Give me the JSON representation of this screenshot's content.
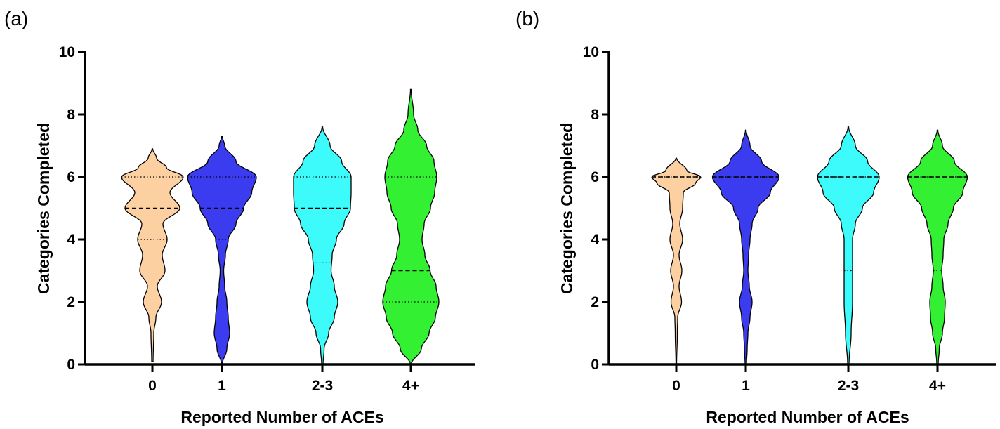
{
  "chart_data": [
    {
      "panel_label": "(a)",
      "type": "violin",
      "xlabel": "Reported Number of  ACEs",
      "ylabel": "Categories Completed",
      "ylim": [
        0,
        10
      ],
      "yticks": [
        0,
        2,
        4,
        6,
        8,
        10
      ],
      "categories": [
        "0",
        "1",
        "2-3",
        "4+"
      ],
      "series": [
        {
          "category": "0",
          "color": "#FDD0A2",
          "range": [
            0.1,
            6.9
          ],
          "median": 5,
          "quartiles": [
            4,
            6
          ],
          "profile": [
            [
              0.1,
              0.02
            ],
            [
              1,
              0.04
            ],
            [
              1.5,
              0.1
            ],
            [
              2,
              0.26
            ],
            [
              2.5,
              0.14
            ],
            [
              3,
              0.36
            ],
            [
              3.5,
              0.28
            ],
            [
              4,
              0.42
            ],
            [
              4.5,
              0.3
            ],
            [
              5,
              0.78
            ],
            [
              5.5,
              0.5
            ],
            [
              6,
              0.88
            ],
            [
              6.3,
              0.4
            ],
            [
              6.6,
              0.12
            ],
            [
              6.9,
              0.01
            ]
          ]
        },
        {
          "category": "1",
          "color": "#3B3BF0",
          "range": [
            0.0,
            7.3
          ],
          "median": 5,
          "quartiles": [
            4,
            6
          ],
          "profile": [
            [
              0.0,
              0.01
            ],
            [
              0.5,
              0.14
            ],
            [
              1,
              0.22
            ],
            [
              1.5,
              0.18
            ],
            [
              2,
              0.14
            ],
            [
              2.5,
              0.08
            ],
            [
              3,
              0.05
            ],
            [
              3.5,
              0.1
            ],
            [
              4,
              0.18
            ],
            [
              4.5,
              0.4
            ],
            [
              5,
              0.62
            ],
            [
              5.5,
              0.85
            ],
            [
              6,
              0.98
            ],
            [
              6.5,
              0.4
            ],
            [
              7,
              0.08
            ],
            [
              7.3,
              0.01
            ]
          ]
        },
        {
          "category": "2-3",
          "color": "#3DFBFB",
          "range": [
            0.0,
            7.6
          ],
          "median": 5,
          "quartiles": [
            3.25,
            6
          ],
          "profile": [
            [
              0.0,
              0.02
            ],
            [
              0.5,
              0.05
            ],
            [
              1,
              0.18
            ],
            [
              1.5,
              0.34
            ],
            [
              2,
              0.44
            ],
            [
              2.5,
              0.34
            ],
            [
              3,
              0.25
            ],
            [
              3.5,
              0.28
            ],
            [
              4,
              0.4
            ],
            [
              4.5,
              0.62
            ],
            [
              5,
              0.8
            ],
            [
              5.5,
              0.82
            ],
            [
              6,
              0.82
            ],
            [
              6.5,
              0.55
            ],
            [
              7,
              0.22
            ],
            [
              7.6,
              0.01
            ]
          ]
        },
        {
          "category": "4+",
          "color": "#33F033",
          "range": [
            0.0,
            8.8
          ],
          "median": 3,
          "quartiles": [
            2,
            6
          ],
          "profile": [
            [
              0.0,
              0.01
            ],
            [
              0.5,
              0.3
            ],
            [
              1,
              0.52
            ],
            [
              1.5,
              0.7
            ],
            [
              2,
              0.8
            ],
            [
              2.5,
              0.72
            ],
            [
              3,
              0.55
            ],
            [
              3.5,
              0.4
            ],
            [
              4,
              0.32
            ],
            [
              4.5,
              0.38
            ],
            [
              5,
              0.56
            ],
            [
              5.5,
              0.68
            ],
            [
              6,
              0.74
            ],
            [
              6.5,
              0.66
            ],
            [
              7,
              0.45
            ],
            [
              7.5,
              0.2
            ],
            [
              8,
              0.08
            ],
            [
              8.8,
              0.01
            ]
          ]
        }
      ]
    },
    {
      "panel_label": "(b)",
      "type": "violin",
      "xlabel": "Reported Number of  ACEs",
      "ylabel": "Categories Completed",
      "ylim": [
        0,
        10
      ],
      "yticks": [
        0,
        2,
        4,
        6,
        8,
        10
      ],
      "categories": [
        "0",
        "1",
        "2-3",
        "4+"
      ],
      "series": [
        {
          "category": "0",
          "color": "#FDD0A2",
          "range": [
            0.0,
            6.6
          ],
          "median": 6,
          "quartiles": [
            6,
            6
          ],
          "profile": [
            [
              0.0,
              0.01
            ],
            [
              1,
              0.03
            ],
            [
              1.5,
              0.04
            ],
            [
              2,
              0.15
            ],
            [
              2.5,
              0.08
            ],
            [
              3,
              0.16
            ],
            [
              3.5,
              0.08
            ],
            [
              4,
              0.18
            ],
            [
              4.5,
              0.1
            ],
            [
              5,
              0.18
            ],
            [
              5.5,
              0.2
            ],
            [
              5.8,
              0.55
            ],
            [
              6,
              0.7
            ],
            [
              6.2,
              0.3
            ],
            [
              6.6,
              0.01
            ]
          ]
        },
        {
          "category": "1",
          "color": "#3B3BF0",
          "range": [
            0.0,
            7.5
          ],
          "median": 6,
          "quartiles": [
            6,
            6
          ],
          "profile": [
            [
              0.0,
              0.02
            ],
            [
              0.5,
              0.04
            ],
            [
              1,
              0.06
            ],
            [
              1.5,
              0.12
            ],
            [
              2,
              0.18
            ],
            [
              2.5,
              0.1
            ],
            [
              3,
              0.06
            ],
            [
              3.5,
              0.08
            ],
            [
              4,
              0.12
            ],
            [
              4.5,
              0.18
            ],
            [
              5,
              0.35
            ],
            [
              5.5,
              0.7
            ],
            [
              6,
              0.95
            ],
            [
              6.5,
              0.45
            ],
            [
              7,
              0.12
            ],
            [
              7.5,
              0.01
            ]
          ]
        },
        {
          "category": "2-3",
          "color": "#3DFBFB",
          "range": [
            0.0,
            7.6
          ],
          "median": 6,
          "quartiles": [
            3,
            6
          ],
          "profile": [
            [
              0.0,
              0.02
            ],
            [
              1,
              0.08
            ],
            [
              2,
              0.12
            ],
            [
              3,
              0.12
            ],
            [
              4,
              0.12
            ],
            [
              4.5,
              0.2
            ],
            [
              5,
              0.4
            ],
            [
              5.5,
              0.72
            ],
            [
              6,
              0.88
            ],
            [
              6.5,
              0.55
            ],
            [
              7,
              0.2
            ],
            [
              7.6,
              0.01
            ]
          ]
        },
        {
          "category": "4+",
          "color": "#33F033",
          "range": [
            0.0,
            7.5
          ],
          "median": 6,
          "quartiles": [
            3,
            6
          ],
          "profile": [
            [
              0.0,
              0.02
            ],
            [
              0.5,
              0.05
            ],
            [
              1,
              0.14
            ],
            [
              1.5,
              0.2
            ],
            [
              2,
              0.22
            ],
            [
              2.5,
              0.16
            ],
            [
              3,
              0.12
            ],
            [
              3.5,
              0.16
            ],
            [
              4,
              0.18
            ],
            [
              4.5,
              0.3
            ],
            [
              5,
              0.45
            ],
            [
              5.5,
              0.72
            ],
            [
              6,
              0.85
            ],
            [
              6.5,
              0.48
            ],
            [
              7,
              0.14
            ],
            [
              7.5,
              0.01
            ]
          ]
        }
      ]
    }
  ]
}
